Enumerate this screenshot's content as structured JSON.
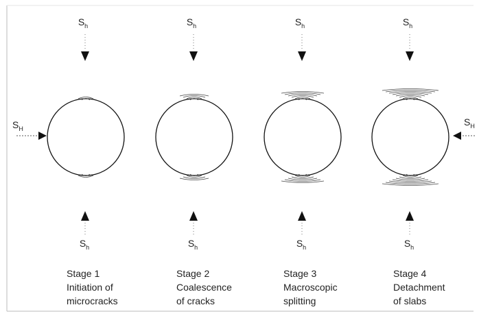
{
  "stages": [
    {
      "name": "Stage 1",
      "description": [
        "Initiation of",
        "microcracks"
      ],
      "top_stress": {
        "symbol": "S",
        "subscript": "h"
      },
      "bottom_stress": {
        "symbol": "S",
        "subscript": "h"
      }
    },
    {
      "name": "Stage 2",
      "description": [
        "Coalescence",
        "of cracks"
      ],
      "top_stress": {
        "symbol": "S",
        "subscript": "h"
      },
      "bottom_stress": {
        "symbol": "S",
        "subscript": "h"
      }
    },
    {
      "name": "Stage 3",
      "description": [
        "Macroscopic",
        "splitting"
      ],
      "top_stress": {
        "symbol": "S",
        "subscript": "h"
      },
      "bottom_stress": {
        "symbol": "S",
        "subscript": "h"
      }
    },
    {
      "name": "Stage 4",
      "description": [
        "Detachment",
        "of slabs"
      ],
      "top_stress": {
        "symbol": "S",
        "subscript": "h"
      },
      "bottom_stress": {
        "symbol": "S",
        "subscript": "h"
      }
    }
  ],
  "side_stress": {
    "left": {
      "symbol": "S",
      "subscript": "H"
    },
    "right": {
      "symbol": "S",
      "subscript": "H"
    }
  }
}
